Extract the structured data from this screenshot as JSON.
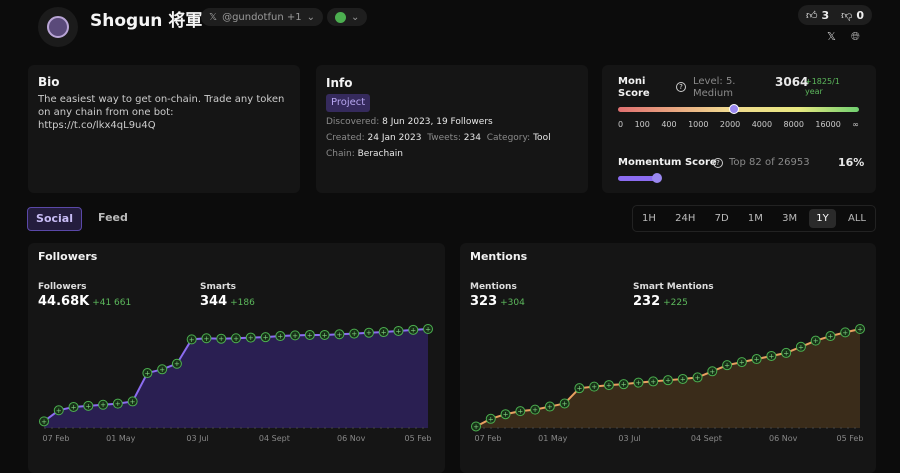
{
  "header": {
    "name": "Shogun 将軍",
    "handle": "@gundotfun +1",
    "upvotes": "3",
    "downvotes": "0"
  },
  "bio": {
    "title": "Bio",
    "text": "The easiest way to get on-chain. Trade any token on any chain from one bot: https://t.co/lkx4qL9u4Q"
  },
  "info": {
    "title": "Info",
    "badge": "Project",
    "discovered_label": "Discovered:",
    "discovered": "8 Jun 2023, 19 Followers",
    "created_label": "Created:",
    "created": "24 Jan 2023",
    "tweets_label": "Tweets:",
    "tweets": "234",
    "category_label": "Category:",
    "category": "Tool",
    "chain_label": "Chain:",
    "chain": "Berachain"
  },
  "moni": {
    "title": "Moni Score",
    "level": "Level: 5. Medium",
    "score": "3064",
    "change": "+1825/1 year",
    "scale": [
      "0",
      "100",
      "400",
      "1000",
      "2000",
      "4000",
      "8000",
      "16000",
      "∞"
    ],
    "momentum_title": "Momentum Score",
    "momentum_rank": "Top 82 of 26953",
    "momentum_pct": "16%",
    "momentum_value": 16
  },
  "tabs": [
    "Social",
    "Feed"
  ],
  "timeframes": [
    "1H",
    "24H",
    "7D",
    "1M",
    "3M",
    "1Y",
    "ALL"
  ],
  "active_timeframe": "1Y",
  "colors": {
    "accent": "#8b6cf0",
    "positive": "#5cb85c",
    "followers_fill": "#2a1f52",
    "mentions_fill": "#3a2c1a",
    "mentions_line": "#e8a060"
  },
  "chart_data": [
    {
      "type": "area",
      "title": "Followers",
      "stats": [
        {
          "label": "Followers",
          "value": "44.68K",
          "change": "+41 661"
        },
        {
          "label": "Smarts",
          "value": "344",
          "change": "+186"
        }
      ],
      "x_ticks": [
        "07 Feb",
        "01 May",
        "03 Jul",
        "04 Sept",
        "06 Nov",
        "05 Feb"
      ],
      "values": [
        3000,
        8000,
        9500,
        10000,
        10500,
        11000,
        12000,
        24800,
        26500,
        29000,
        40000,
        40500,
        40300,
        40500,
        40800,
        41000,
        41500,
        41800,
        42000,
        42000,
        42300,
        42600,
        43000,
        43300,
        43800,
        44300,
        44680
      ]
    },
    {
      "type": "area",
      "title": "Mentions",
      "stats": [
        {
          "label": "Mentions",
          "value": "323",
          "change": "+304"
        },
        {
          "label": "Smart Mentions",
          "value": "232",
          "change": "+225"
        }
      ],
      "x_ticks": [
        "07 Feb",
        "01 May",
        "03 Jul",
        "04 Sept",
        "06 Nov",
        "05 Feb"
      ],
      "values": [
        5,
        30,
        45,
        55,
        60,
        70,
        80,
        130,
        135,
        140,
        143,
        148,
        152,
        156,
        160,
        165,
        185,
        205,
        215,
        225,
        235,
        245,
        265,
        285,
        300,
        312,
        323
      ]
    }
  ]
}
